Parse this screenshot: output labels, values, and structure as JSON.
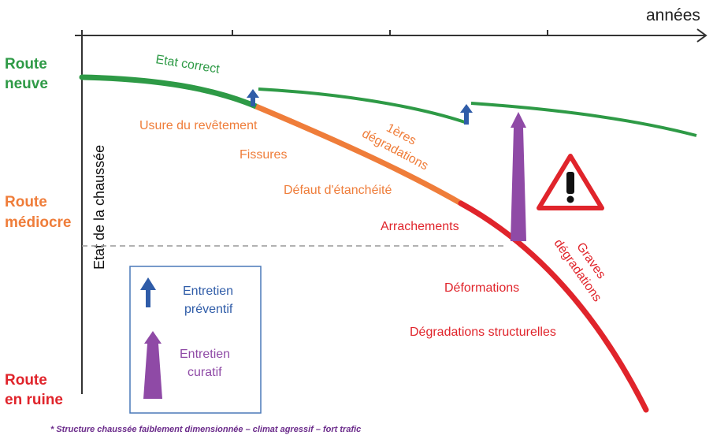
{
  "axes": {
    "x_title": "années",
    "y_title": "Etat de la chaussée"
  },
  "levels": {
    "new": [
      "Route",
      "neuve"
    ],
    "mediocre": [
      "Route",
      "médiocre"
    ],
    "ruin": [
      "Route",
      "en ruine"
    ]
  },
  "curve_labels": {
    "etat_correct": "Etat correct",
    "usure": "Usure du revêtement",
    "fissures": "Fissures",
    "premieres_degradations": [
      "1ères",
      "dégradations"
    ],
    "defaut_etancheite": "Défaut d'étanchéité",
    "arrachements": "Arrachements",
    "graves_degradations": [
      "Graves",
      "dégradations"
    ],
    "deformations": "Déformations",
    "degradations_structurelles": "Dégradations structurelles"
  },
  "legend": {
    "preventif": [
      "Entretien",
      "préventif"
    ],
    "curatif": [
      "Entretien",
      "curatif"
    ]
  },
  "footnote": "* Structure chaussée faiblement dimensionnée – climat agressif – fort trafic",
  "colors": {
    "green": "#2e9a46",
    "orange": "#ef7d3a",
    "red": "#e0242b",
    "blue": "#2f5ca8",
    "purple": "#8f4aa6",
    "axis": "#333333",
    "footnote": "#6a2a8a",
    "legend_border": "#4a78b8"
  },
  "icons": {
    "warning": "warning-triangle-icon",
    "preventive": "blue-up-arrow-icon",
    "curative": "purple-up-arrow-icon"
  }
}
